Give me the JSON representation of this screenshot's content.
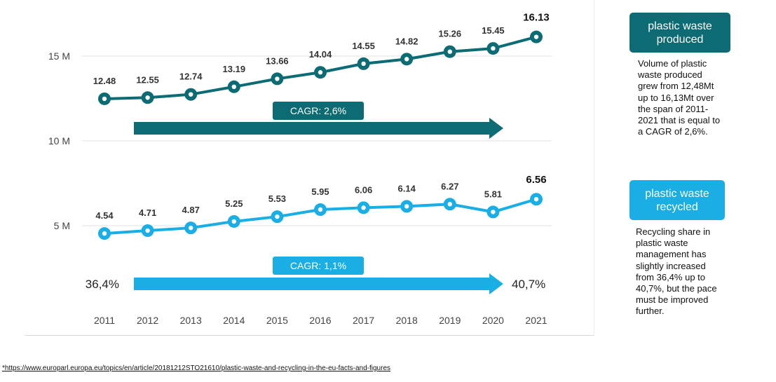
{
  "chart_data": {
    "type": "line",
    "x": [
      "2011",
      "2012",
      "2013",
      "2014",
      "2015",
      "2016",
      "2017",
      "2018",
      "2019",
      "2020",
      "2021"
    ],
    "y_ticks": [
      {
        "label": "15 M",
        "value": 15
      },
      {
        "label": "10 M",
        "value": 10
      },
      {
        "label": "5 M",
        "value": 5
      }
    ],
    "series": [
      {
        "name": "plastic waste produced",
        "color": "#0d6b73",
        "values": [
          12.48,
          12.55,
          12.74,
          13.19,
          13.66,
          14.04,
          14.55,
          14.82,
          15.26,
          15.45,
          16.13
        ],
        "labels": [
          "12.48",
          "12.55",
          "12.74",
          "13.19",
          "13.66",
          "14.04",
          "14.55",
          "14.82",
          "15.26",
          "15.45",
          "16.13"
        ],
        "cagr_label": "CAGR: 2,6%"
      },
      {
        "name": "plastic waste recycled",
        "color": "#1aaee4",
        "values": [
          4.54,
          4.71,
          4.87,
          5.25,
          5.53,
          5.95,
          6.06,
          6.14,
          6.27,
          5.81,
          6.56
        ],
        "labels": [
          "4.54",
          "4.71",
          "4.87",
          "5.25",
          "5.53",
          "5.95",
          "6.06",
          "6.14",
          "6.27",
          "5.81",
          "6.56"
        ],
        "cagr_label": "CAGR: 1,1%",
        "start_share": "36,4%",
        "end_share": "40,7%"
      }
    ]
  },
  "sidebar": {
    "produced": {
      "title": "plastic waste produced",
      "description": "Volume of plastic waste produced grew from 12,48Mt up to 16,13Mt over the span of 2011-2021 that is equal to a CAGR of 2,6%."
    },
    "recycled": {
      "title": "plastic waste recycled",
      "description": "Recycling share in plastic waste management has slightly increased from 36,4% up to 40,7%, but the pace must be improved further."
    }
  },
  "footnote": "*https://www.europarl.europa.eu/topics/en/article/20181212STO21610/plastic-waste-and-recycling-in-the-eu-facts-and-figures"
}
